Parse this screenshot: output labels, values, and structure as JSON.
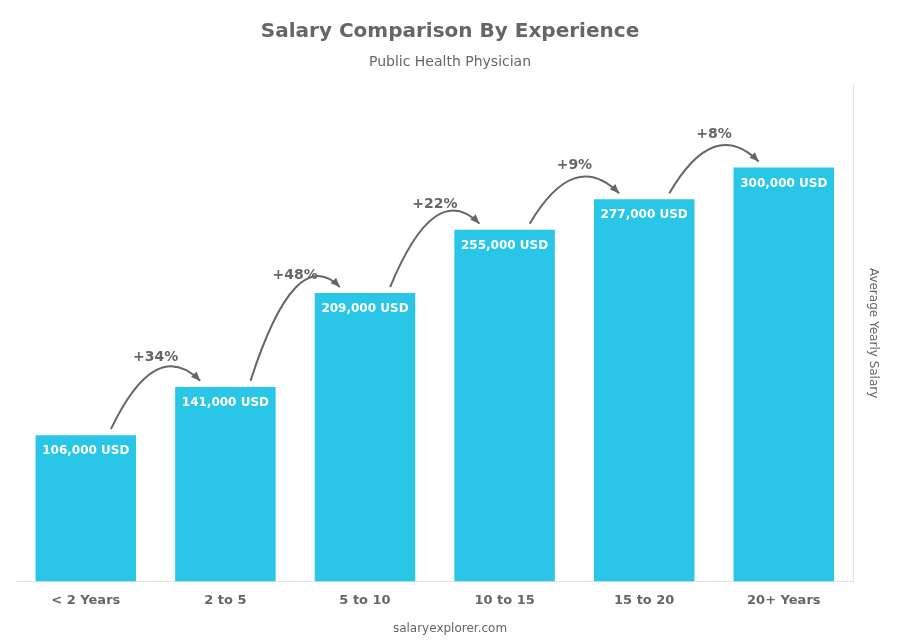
{
  "chart_data": {
    "type": "bar",
    "title": "Salary Comparison By Experience",
    "subtitle": "Public Health Physician",
    "categories": [
      "< 2 Years",
      "2 to 5",
      "5 to 10",
      "10 to 15",
      "15 to 20",
      "20+ Years"
    ],
    "values": [
      106000,
      141000,
      209000,
      255000,
      277000,
      300000
    ],
    "value_labels": [
      "106,000 USD",
      "141,000 USD",
      "209,000 USD",
      "255,000 USD",
      "277,000 USD",
      "300,000 USD"
    ],
    "data_labels": true,
    "color": "#29C6E8",
    "ylim": [
      0,
      360000
    ],
    "ylabel": "Average Yearly Salary",
    "tick_labels": "x",
    "grid": false,
    "annotations": [
      "+34%",
      "+48%",
      "+22%",
      "+9%",
      "+8%"
    ],
    "footer": "salaryexplorer.com"
  }
}
